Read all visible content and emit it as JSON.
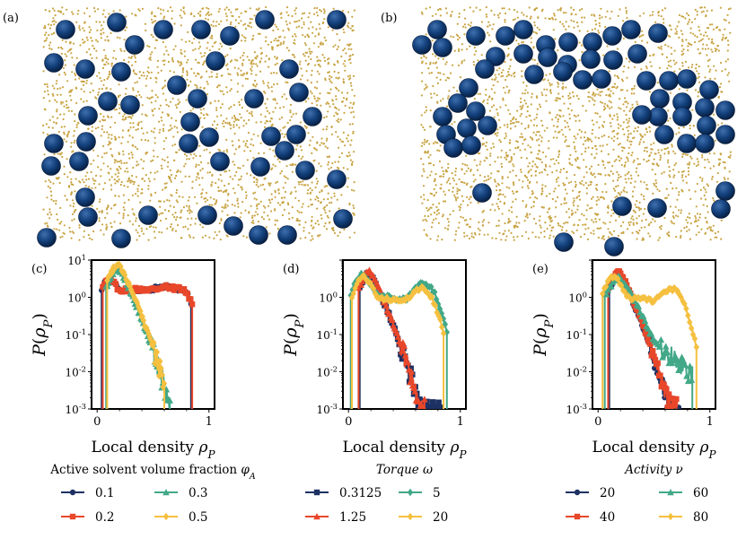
{
  "snapshots": [
    {
      "label": "(a)",
      "particle_colors": {
        "passive": "#123f7a",
        "active": "#c9a545"
      }
    },
    {
      "label": "(b)",
      "particle_colors": {
        "passive": "#123f7a",
        "active": "#c9a545"
      }
    }
  ],
  "colors": {
    "navy": "#1d3163",
    "red": "#e8472a",
    "teal": "#42a888",
    "yellow": "#f5c040"
  },
  "y_tick_labels": [
    "10^{-3}",
    "10^{-2}",
    "10^{-1}",
    "10^{0}",
    "10^{1}"
  ],
  "chart_data": [
    {
      "type": "line",
      "panel_label": "(c)",
      "xlabel": "Local density ρ_P",
      "ylabel": "P(ρ_P)",
      "xlim": [
        -0.05,
        1.05
      ],
      "ylim": [
        0.001,
        10
      ],
      "yscale": "log",
      "x_ticks": [
        "0",
        "1"
      ],
      "show_top_y_tick": true,
      "legend_title": "Active solvent volume fraction φ_A",
      "series": [
        {
          "name": "0.1",
          "color": "navy",
          "marker": "circle",
          "profile": "broad",
          "x0": 0.04,
          "x1": 0.84
        },
        {
          "name": "0.2",
          "color": "red",
          "marker": "square",
          "profile": "broad",
          "x0": 0.05,
          "x1": 0.85
        },
        {
          "name": "0.3",
          "color": "teal",
          "marker": "triangle",
          "profile": "narrow",
          "peak": 6.5,
          "x0": 0.08,
          "x1": 0.65
        },
        {
          "name": "0.5",
          "color": "yellow",
          "marker": "diamond",
          "profile": "narrow",
          "peak": 8.0,
          "x0": 0.09,
          "x1": 0.6
        }
      ]
    },
    {
      "type": "line",
      "panel_label": "(d)",
      "xlabel": "Local density ρ_P",
      "ylabel": "P(ρ_P)",
      "xlim": [
        -0.05,
        1.05
      ],
      "ylim": [
        0.001,
        10
      ],
      "yscale": "log",
      "x_ticks": [
        "0",
        "1"
      ],
      "show_top_y_tick": false,
      "legend_title": "Torque  ω",
      "series": [
        {
          "name": "0.3125",
          "color": "navy",
          "marker": "square",
          "profile": "narrow",
          "peak": 4.5,
          "x0": 0.1,
          "x1": 0.82
        },
        {
          "name": "1.25",
          "color": "red",
          "marker": "triangle",
          "profile": "narrow",
          "peak": 5.0,
          "x0": 0.09,
          "x1": 0.68
        },
        {
          "name": "5",
          "color": "teal",
          "marker": "diamond",
          "profile": "broad2",
          "x0": 0.02,
          "x1": 0.88
        },
        {
          "name": "20",
          "color": "yellow",
          "marker": "diamond",
          "profile": "broad3",
          "x0": 0.03,
          "x1": 0.85
        }
      ]
    },
    {
      "type": "line",
      "panel_label": "(e)",
      "xlabel": "Local density ρ_P",
      "ylabel": "P(ρ_P)",
      "xlim": [
        -0.05,
        1.05
      ],
      "ylim": [
        0.001,
        10
      ],
      "yscale": "log",
      "x_ticks": [
        "0",
        "1"
      ],
      "show_top_y_tick": false,
      "legend_title": "Activity  ν",
      "series": [
        {
          "name": "20",
          "color": "navy",
          "marker": "circle",
          "profile": "narrow",
          "peak": 4.2,
          "x0": 0.1,
          "x1": 0.72
        },
        {
          "name": "40",
          "color": "red",
          "marker": "square",
          "profile": "narrow",
          "peak": 5.0,
          "x0": 0.09,
          "x1": 0.7
        },
        {
          "name": "60",
          "color": "teal",
          "marker": "triangle",
          "profile": "mid",
          "peak": 3.5,
          "x0": 0.06,
          "x1": 0.85
        },
        {
          "name": "80",
          "color": "yellow",
          "marker": "diamond",
          "profile": "broad3",
          "x0": 0.04,
          "x1": 0.88
        }
      ]
    }
  ]
}
